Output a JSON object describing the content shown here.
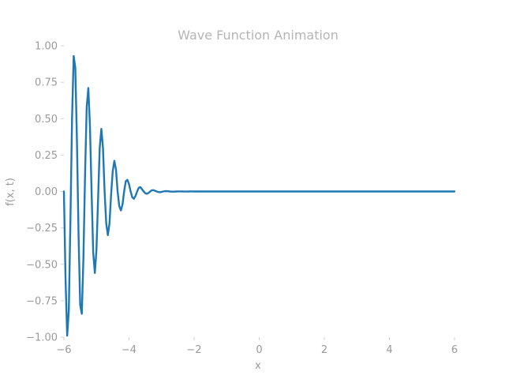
{
  "chart_data": {
    "type": "line",
    "title": "Wave Function Animation",
    "xlabel": "x",
    "ylabel": "f(x, t)",
    "xlim": [
      -6,
      6
    ],
    "ylim": [
      -1.0,
      1.0
    ],
    "xticks": [
      -6,
      -4,
      -2,
      0,
      2,
      4,
      6
    ],
    "xtick_labels": [
      "−6",
      "−4",
      "−2",
      "0",
      "2",
      "4",
      "6"
    ],
    "yticks": [
      1.0,
      0.75,
      0.5,
      0.25,
      0.0,
      -0.25,
      -0.5,
      -0.75,
      -1.0
    ],
    "ytick_labels": [
      "1.00",
      "0.75",
      "0.50",
      "0.25",
      "0.00",
      "−0.25",
      "−0.50",
      "−0.75",
      "−1.00"
    ],
    "grid": false,
    "series": [
      {
        "color": "#1f77b4",
        "x": [
          -6.0,
          -5.95,
          -5.9,
          -5.85,
          -5.8,
          -5.75,
          -5.7,
          -5.65,
          -5.6,
          -5.55,
          -5.5,
          -5.45,
          -5.4,
          -5.35,
          -5.3,
          -5.25,
          -5.2,
          -5.15,
          -5.1,
          -5.05,
          -5.0,
          -4.95,
          -4.9,
          -4.85,
          -4.8,
          -4.75,
          -4.7,
          -4.65,
          -4.6,
          -4.55,
          -4.5,
          -4.45,
          -4.4,
          -4.35,
          -4.3,
          -4.25,
          -4.2,
          -4.15,
          -4.1,
          -4.05,
          -4.0,
          -3.95,
          -3.9,
          -3.85,
          -3.8,
          -3.75,
          -3.7,
          -3.65,
          -3.6,
          -3.55,
          -3.5,
          -3.45,
          -3.4,
          -3.35,
          -3.3,
          -3.25,
          -3.2,
          -3.15,
          -3.1,
          -3.05,
          -3.0,
          -2.95,
          -2.9,
          -2.85,
          -2.8,
          -2.75,
          -2.7,
          -2.65,
          -2.6,
          -2.55,
          -2.5,
          -2.45,
          -2.4,
          -2.35,
          -2.3,
          -2.25,
          -2.2,
          -2.15,
          -2.1,
          -2.05,
          -2.0,
          -1.95,
          -1.9,
          -1.85,
          -1.8,
          -1.75,
          -1.7,
          -1.65,
          -1.6,
          -1.55,
          -1.5,
          -1.45,
          -1.4,
          -1.35,
          -1.3,
          -1.25,
          -1.2,
          -1.15,
          -1.1,
          -1.05,
          -1.0,
          -0.95,
          -0.9,
          -0.85,
          -0.8,
          -0.75,
          -0.7,
          -0.65,
          -0.6,
          -0.55,
          -0.5,
          0.0,
          1.0,
          2.0,
          3.0,
          4.0,
          5.0,
          6.0
        ],
        "y": [
          0.0,
          -0.6,
          -0.99,
          -0.82,
          -0.2,
          0.5,
          0.93,
          0.85,
          0.35,
          -0.3,
          -0.78,
          -0.84,
          -0.45,
          0.12,
          0.58,
          0.71,
          0.45,
          0.0,
          -0.42,
          -0.56,
          -0.4,
          -0.05,
          0.3,
          0.43,
          0.3,
          0.0,
          -0.22,
          -0.3,
          -0.22,
          -0.02,
          0.14,
          0.21,
          0.15,
          0.0,
          -0.1,
          -0.13,
          -0.09,
          0.0,
          0.07,
          0.08,
          0.05,
          0.0,
          -0.04,
          -0.05,
          -0.03,
          0.0,
          0.025,
          0.03,
          0.015,
          0.0,
          -0.012,
          -0.016,
          -0.01,
          0.0,
          0.008,
          0.009,
          0.005,
          0.0,
          -0.004,
          -0.005,
          -0.003,
          0.0,
          0.002,
          0.0025,
          0.0015,
          0.0,
          -0.001,
          -0.0012,
          -0.0008,
          0.0,
          0.0005,
          0.0006,
          0.0004,
          0.0,
          -0.0002,
          -0.0003,
          -0.0002,
          0.0,
          0.0001,
          0.0001,
          0.0,
          0.0,
          0.0,
          0.0,
          0.0,
          0.0,
          0.0,
          0.0,
          0.0,
          0.0,
          0.0,
          0.0,
          0.0,
          0.0,
          0.0,
          0.0,
          0.0,
          0.0,
          0.0,
          0.0,
          0.0,
          0.0,
          0.0,
          0.0,
          0.0,
          0.0,
          0.0,
          0.0,
          0.0,
          0.0,
          0.0,
          0.0,
          0.0,
          0.0,
          0.0,
          0.0,
          0.0,
          0.0
        ]
      }
    ]
  }
}
